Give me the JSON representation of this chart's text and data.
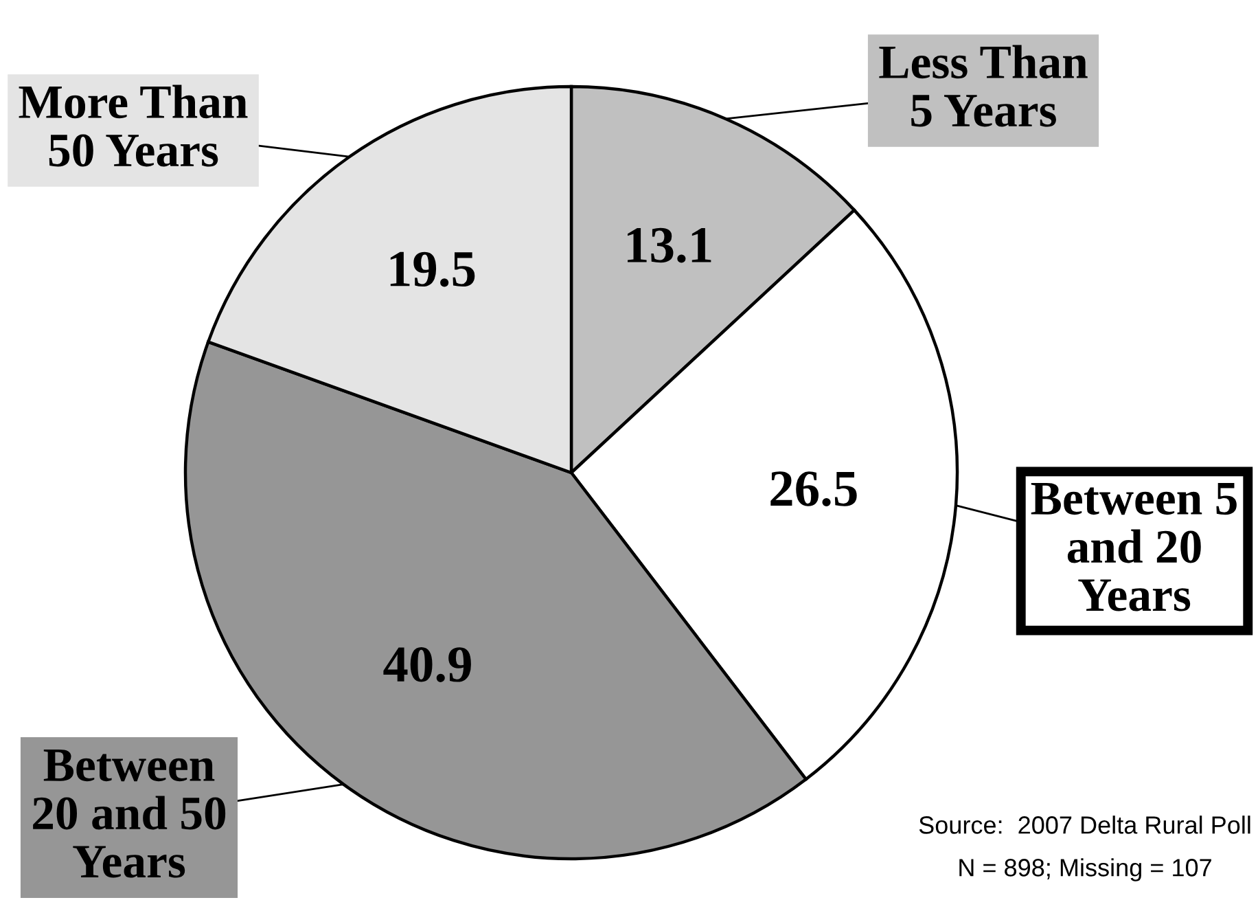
{
  "chart_data": {
    "type": "pie",
    "categories": [
      "Less Than\n5 Years",
      "Between 5\nand 20\nYears",
      "Between\n20 and 50\nYears",
      "More Than\n50 Years"
    ],
    "values": [
      13.1,
      26.5,
      40.9,
      19.5
    ],
    "colors": [
      "#c0c0c0",
      "#ffffff",
      "#969696",
      "#e4e4e4"
    ],
    "data_labels": true,
    "annotations": [
      "Source:  2007 Delta Rural Poll",
      "N = 898; Missing = 107"
    ]
  }
}
